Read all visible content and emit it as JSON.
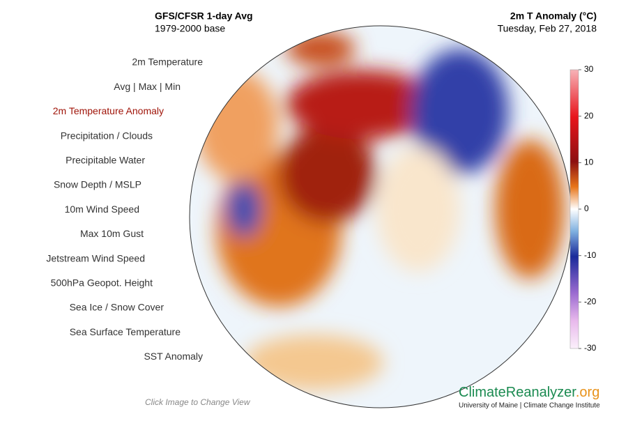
{
  "header": {
    "title": "GFS/CFSR 1-day Avg",
    "subtitle": "1979-2000 base",
    "variable": "2m T Anomaly (°C)",
    "date": "Tuesday, Feb 27, 2018"
  },
  "menu": {
    "items": [
      "2m Temperature",
      "Avg  |  Max  |  Min",
      "2m Temperature Anomaly",
      "Precipitation / Clouds",
      "Precipitable Water",
      "Snow Depth / MSLP",
      "10m Wind Speed",
      "Max 10m Gust",
      "Jetstream Wind Speed",
      "500hPa Geopot. Height",
      "Sea Ice / Snow Cover",
      "Sea Surface Temperature",
      "SST Anomaly"
    ],
    "active": 2
  },
  "colorbar": {
    "range": [
      -30,
      30
    ],
    "ticks": [
      30,
      20,
      10,
      0,
      -10,
      -20,
      -30
    ]
  },
  "footer": {
    "hint": "Click Image to Change View",
    "brand": "ClimateReanalyzer",
    "brand_suffix": ".org",
    "tagline": "University of Maine | Climate Change Institute"
  }
}
